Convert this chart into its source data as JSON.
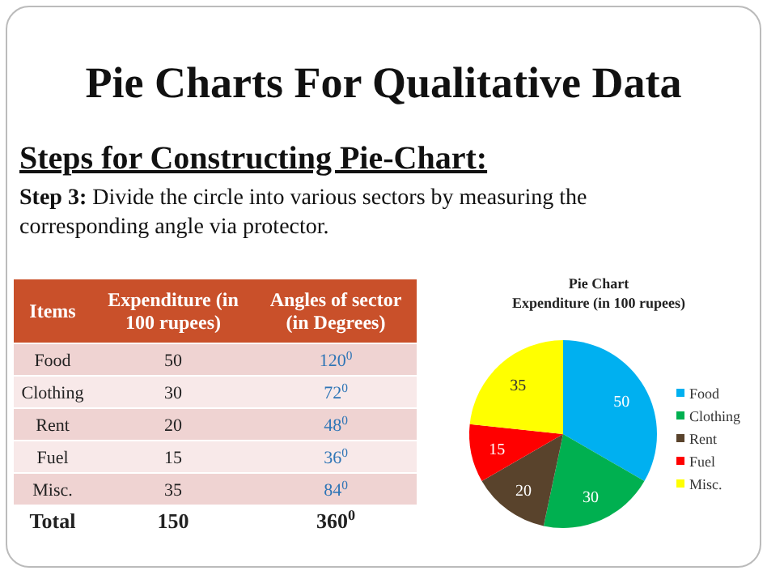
{
  "chart_data": [
    {
      "type": "other",
      "title": "Pie Charts For Qualitative Data",
      "subtitle": "Steps for Constructing Pie-Chart:",
      "annotations": [
        "Step 3:",
        "Divide the circle into various sectors by measuring the corresponding angle via protector.",
        "Items",
        "Expenditure (in 100 rupees)",
        "Angles of sector (in Degrees)",
        "Food",
        "50",
        "120$^{0}$",
        "Clothing",
        "30",
        "72$^{0}$",
        "Rent",
        "20",
        "48$^{0}$",
        "Fuel",
        "15",
        "36$^{0}$",
        "Misc.",
        "35",
        "84$^{0}$",
        "Total",
        "150",
        "360$^{0}$"
      ]
    },
    {
      "type": "pie",
      "title": "Pie Chart",
      "subtitle": "Expenditure (in 100 rupees)",
      "categories": [
        "Food",
        "Clothing",
        "Rent",
        "Fuel",
        "Misc."
      ],
      "values": [
        50,
        30,
        20,
        15,
        35
      ],
      "colors": [
        "#00b0f0",
        "#00b050",
        "#59432c",
        "#ff0000",
        "#ffff00"
      ],
      "data_labels": true,
      "legend": "right"
    }
  ]
}
